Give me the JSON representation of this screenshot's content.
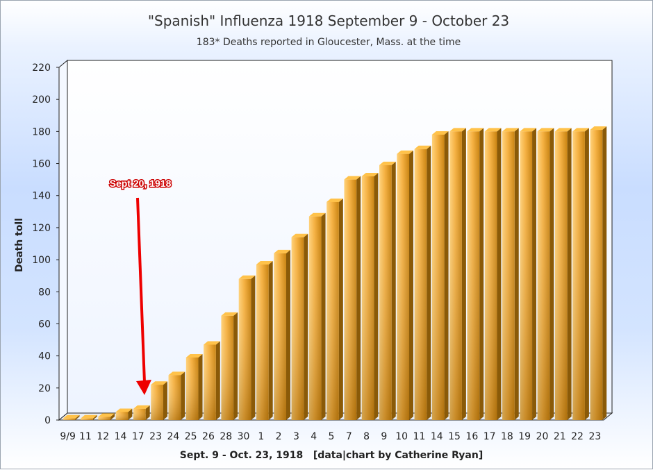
{
  "chart_data": {
    "type": "bar",
    "title": "\"Spanish\" Influenza 1918 September 9 - October 23",
    "subtitle": "183* Deaths reported in Gloucester, Mass. at the time",
    "xlabel": "Sept. 9 - Oct. 23, 1918   [data|chart by Catherine Ryan]",
    "ylabel": "Death toll",
    "ylim": [
      0,
      220
    ],
    "yticks": [
      0,
      20,
      40,
      60,
      80,
      100,
      120,
      140,
      160,
      180,
      200,
      220
    ],
    "categories": [
      "9/9",
      "11",
      "12",
      "14",
      "17",
      "23",
      "24",
      "25",
      "26",
      "28",
      "30",
      "1",
      "2",
      "3",
      "4",
      "5",
      "7",
      "8",
      "9",
      "10",
      "11",
      "14",
      "15",
      "16",
      "17",
      "18",
      "19",
      "20",
      "21",
      "22",
      "23"
    ],
    "values": [
      1,
      1,
      2,
      5,
      7,
      22,
      28,
      39,
      47,
      65,
      88,
      97,
      104,
      114,
      127,
      136,
      150,
      152,
      159,
      166,
      169,
      178,
      180,
      180,
      180,
      180,
      180,
      180,
      180,
      180,
      181
    ],
    "bar_color": "#f0a020",
    "grid": false,
    "annotations": [
      {
        "text": "Sept 20, 1918",
        "points_to_category_index": 4,
        "color": "#e00000"
      }
    ]
  }
}
